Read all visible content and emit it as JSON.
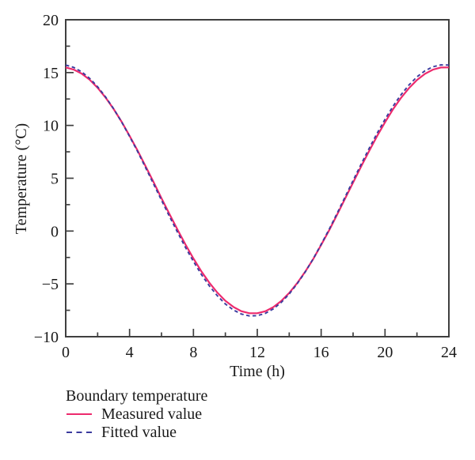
{
  "chart_data": {
    "type": "line",
    "title": "",
    "xlabel": "Time (h)",
    "ylabel": "Temperature (°C)",
    "xlim": [
      0,
      24
    ],
    "ylim": [
      -10,
      20
    ],
    "grid": false,
    "x_major_ticks": [
      0,
      4,
      8,
      12,
      16,
      20,
      24
    ],
    "x_tick_labels": [
      "0",
      "4",
      "8",
      "12",
      "16",
      "20",
      "24"
    ],
    "x_minor_ticks": [
      2,
      6,
      10,
      14,
      18,
      22
    ],
    "y_major_ticks": [
      -10,
      -5,
      0,
      5,
      10,
      15,
      20
    ],
    "y_tick_labels": [
      "−10",
      "−5",
      "0",
      "5",
      "10",
      "15",
      "20"
    ],
    "y_minor_ticks": [
      -7.5,
      -2.5,
      2.5,
      7.5,
      12.5,
      17.5
    ],
    "legend_title": "Boundary temperature",
    "legend_position": "below-left",
    "x": [
      0,
      0.5,
      1,
      1.5,
      2,
      2.5,
      3,
      3.5,
      4,
      4.5,
      5,
      5.5,
      6,
      6.5,
      7,
      7.5,
      8,
      8.5,
      9,
      9.5,
      10,
      10.5,
      11,
      11.5,
      12,
      12.5,
      13,
      13.5,
      14,
      14.5,
      15,
      15.5,
      16,
      16.5,
      17,
      17.5,
      18,
      18.5,
      19,
      19.5,
      20,
      20.5,
      21,
      21.5,
      22,
      22.5,
      23,
      23.5,
      24
    ],
    "series": [
      {
        "name": "Measured value",
        "style": "solid",
        "color": "#ed2a6d",
        "values": [
          15.49,
          15.29,
          14.9,
          14.32,
          13.56,
          12.63,
          11.55,
          10.35,
          9.01,
          7.62,
          6.15,
          4.64,
          3.11,
          1.6,
          0.14,
          -1.28,
          -2.59,
          -3.82,
          -4.9,
          -5.83,
          -6.6,
          -7.18,
          -7.58,
          -7.78,
          -7.78,
          -7.59,
          -7.2,
          -6.62,
          -5.86,
          -4.93,
          -3.85,
          -2.65,
          -1.31,
          0.08,
          1.55,
          3.07,
          4.59,
          6.1,
          7.56,
          8.99,
          10.29,
          11.52,
          12.6,
          13.53,
          14.3,
          14.88,
          15.28,
          15.48,
          15.49
        ]
      },
      {
        "name": "Fitted value",
        "style": "dashed",
        "color": "#3b3b9e",
        "values": [
          15.71,
          15.49,
          15.07,
          14.45,
          13.66,
          12.69,
          11.58,
          10.33,
          8.95,
          7.53,
          6.02,
          4.47,
          2.92,
          1.38,
          -0.11,
          -1.55,
          -2.87,
          -4.11,
          -5.2,
          -6.13,
          -6.9,
          -7.47,
          -7.85,
          -8.03,
          -8.01,
          -7.79,
          -7.37,
          -6.75,
          -5.96,
          -4.99,
          -3.88,
          -2.63,
          -1.25,
          0.17,
          1.68,
          3.23,
          4.78,
          6.32,
          7.81,
          9.25,
          10.57,
          11.81,
          12.9,
          13.83,
          14.6,
          15.17,
          15.55,
          15.73,
          15.71
        ]
      }
    ]
  },
  "colors": {
    "axis": "#3f3f3f",
    "text": "#1a1a1a",
    "background": "#ffffff"
  }
}
